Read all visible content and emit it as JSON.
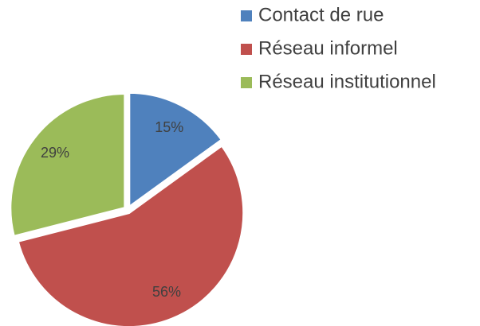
{
  "chart_data": {
    "type": "pie",
    "categories": [
      "Contact de rue",
      "Réseau informel",
      "Réseau institutionnel"
    ],
    "values": [
      15,
      56,
      29
    ],
    "value_labels": [
      "15%",
      "56%",
      "29%"
    ],
    "colors": [
      "#4f81bd",
      "#c0504d",
      "#9bbb59"
    ],
    "legend": "top-right"
  }
}
